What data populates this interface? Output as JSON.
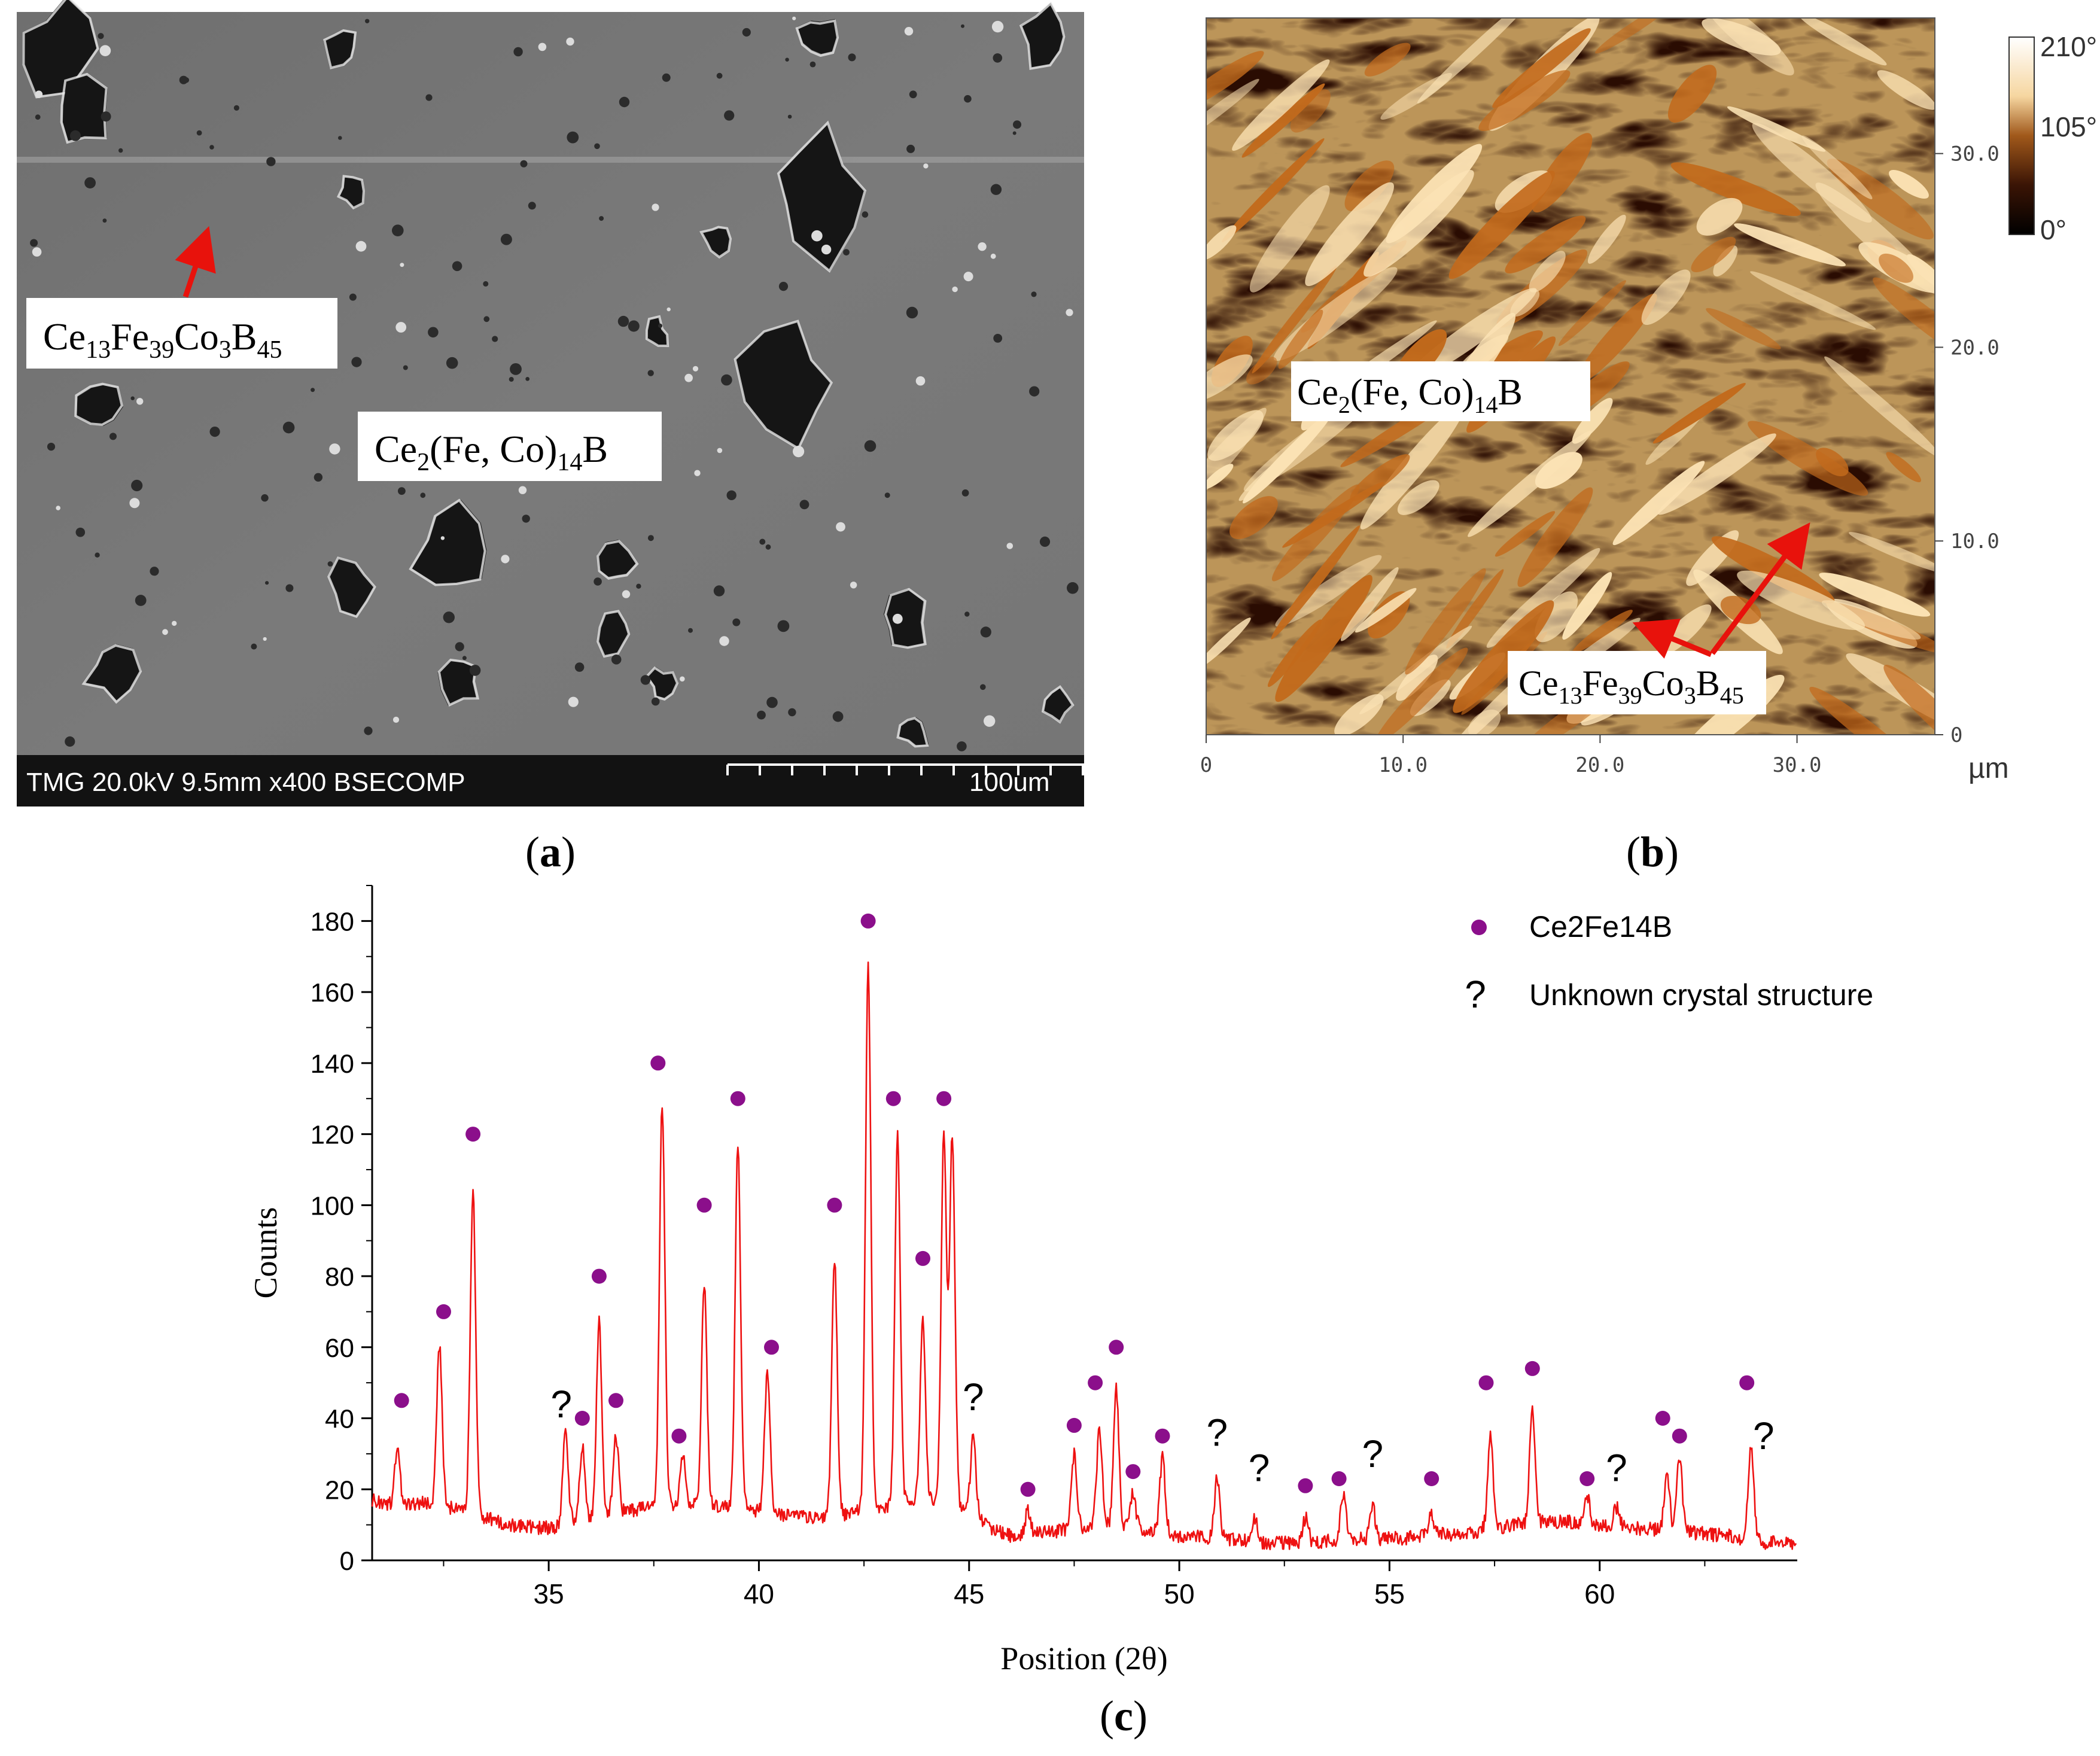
{
  "panel_a": {
    "caption": "a",
    "label_phase": "Ce2(Fe, Co)14B",
    "label_minor": "Ce13Fe39Co3B45",
    "info_bar": "TMG 20.0kV 9.5mm x400 BSECOMP",
    "scale_text": "100um"
  },
  "panel_b": {
    "caption": "b",
    "label_phase": "Ce2(Fe, Co)14B",
    "label_minor": "Ce13Fe39Co3B45",
    "x_ticks": [
      "0",
      "10.0",
      "20.0",
      "30.0"
    ],
    "y_ticks": [
      "0",
      "10.0",
      "20.0",
      "30.0"
    ],
    "unit": "µm",
    "colorbar_labels": [
      "210°",
      "105°",
      "0°"
    ]
  },
  "panel_c": {
    "caption": "c"
  },
  "chart_data": {
    "type": "line",
    "title": "",
    "xlabel": "Position (2θ)",
    "ylabel": "Counts",
    "xlim": [
      30.8,
      64.7
    ],
    "ylim": [
      0,
      190
    ],
    "x_ticks": [
      35,
      40,
      45,
      50,
      55,
      60
    ],
    "y_ticks": [
      0,
      20,
      40,
      60,
      80,
      100,
      120,
      140,
      160,
      180
    ],
    "line_color": "#ee1111",
    "legend_position": "top-right",
    "legend": [
      {
        "marker": "circle",
        "color": "#8b0f8b",
        "label": "Ce2Fe14B"
      },
      {
        "marker": "?",
        "label": "Unknown crystal structure"
      }
    ],
    "baseline": [
      [
        30.8,
        17
      ],
      [
        31.5,
        15
      ],
      [
        32,
        16
      ],
      [
        33,
        14
      ],
      [
        34,
        10
      ],
      [
        35,
        9
      ],
      [
        36,
        12
      ],
      [
        37,
        14
      ],
      [
        38,
        16
      ],
      [
        39,
        15
      ],
      [
        40,
        14
      ],
      [
        41,
        12
      ],
      [
        42,
        13
      ],
      [
        43,
        15
      ],
      [
        44,
        17
      ],
      [
        44.8,
        15
      ],
      [
        45.5,
        9
      ],
      [
        46,
        7
      ],
      [
        47,
        8
      ],
      [
        48,
        10
      ],
      [
        49,
        9
      ],
      [
        50,
        7
      ],
      [
        51,
        6
      ],
      [
        52,
        5
      ],
      [
        53,
        5
      ],
      [
        54,
        6
      ],
      [
        55,
        6
      ],
      [
        56,
        7
      ],
      [
        57,
        8
      ],
      [
        58,
        10
      ],
      [
        59,
        11
      ],
      [
        60,
        10
      ],
      [
        61,
        9
      ],
      [
        62,
        8
      ],
      [
        63,
        7
      ],
      [
        64,
        5
      ],
      [
        64.7,
        5
      ]
    ],
    "peaks": [
      {
        "x": 31.4,
        "h": 31
      },
      {
        "x": 32.4,
        "h": 61
      },
      {
        "x": 33.2,
        "h": 104
      },
      {
        "x": 35.4,
        "h": 37
      },
      {
        "x": 35.8,
        "h": 32
      },
      {
        "x": 36.2,
        "h": 67
      },
      {
        "x": 36.6,
        "h": 35
      },
      {
        "x": 37.7,
        "h": 129
      },
      {
        "x": 38.2,
        "h": 30
      },
      {
        "x": 38.7,
        "h": 78
      },
      {
        "x": 39.5,
        "h": 117
      },
      {
        "x": 40.2,
        "h": 53
      },
      {
        "x": 41.8,
        "h": 85
      },
      {
        "x": 42.6,
        "h": 168
      },
      {
        "x": 43.3,
        "h": 120
      },
      {
        "x": 43.9,
        "h": 67
      },
      {
        "x": 44.4,
        "h": 120
      },
      {
        "x": 44.6,
        "h": 119
      },
      {
        "x": 45.1,
        "h": 35
      },
      {
        "x": 46.4,
        "h": 14
      },
      {
        "x": 47.5,
        "h": 30
      },
      {
        "x": 48.1,
        "h": 37
      },
      {
        "x": 48.5,
        "h": 48
      },
      {
        "x": 48.9,
        "h": 19
      },
      {
        "x": 49.6,
        "h": 29
      },
      {
        "x": 50.9,
        "h": 23
      },
      {
        "x": 51.8,
        "h": 12
      },
      {
        "x": 53,
        "h": 12
      },
      {
        "x": 53.9,
        "h": 18
      },
      {
        "x": 54.6,
        "h": 15
      },
      {
        "x": 56,
        "h": 13
      },
      {
        "x": 57.4,
        "h": 35
      },
      {
        "x": 58.4,
        "h": 43
      },
      {
        "x": 59.7,
        "h": 18
      },
      {
        "x": 60.4,
        "h": 15
      },
      {
        "x": 61.6,
        "h": 25
      },
      {
        "x": 61.9,
        "h": 29
      },
      {
        "x": 63.6,
        "h": 33
      }
    ],
    "markers_Ce2Fe14B": [
      [
        31.5,
        45
      ],
      [
        32.5,
        70
      ],
      [
        33.2,
        120
      ],
      [
        35.8,
        40
      ],
      [
        36.2,
        80
      ],
      [
        36.6,
        45
      ],
      [
        37.6,
        140
      ],
      [
        38.1,
        35
      ],
      [
        38.7,
        100
      ],
      [
        39.5,
        130
      ],
      [
        40.3,
        60
      ],
      [
        41.8,
        100
      ],
      [
        42.6,
        180
      ],
      [
        43.2,
        130
      ],
      [
        43.9,
        85
      ],
      [
        44.4,
        130
      ],
      [
        46.4,
        20
      ],
      [
        47.5,
        38
      ],
      [
        48,
        50
      ],
      [
        48.5,
        60
      ],
      [
        48.9,
        25
      ],
      [
        49.6,
        35
      ],
      [
        53,
        21
      ],
      [
        53.8,
        23
      ],
      [
        56,
        23
      ],
      [
        57.3,
        50
      ],
      [
        58.4,
        54
      ],
      [
        59.7,
        23
      ],
      [
        61.5,
        40
      ],
      [
        61.9,
        35
      ],
      [
        63.5,
        50
      ]
    ],
    "markers_unknown": [
      [
        35.3,
        44
      ],
      [
        45.1,
        46
      ],
      [
        50.9,
        36
      ],
      [
        51.9,
        26
      ],
      [
        54.6,
        30
      ],
      [
        60.4,
        26
      ],
      [
        63.9,
        35
      ]
    ]
  }
}
